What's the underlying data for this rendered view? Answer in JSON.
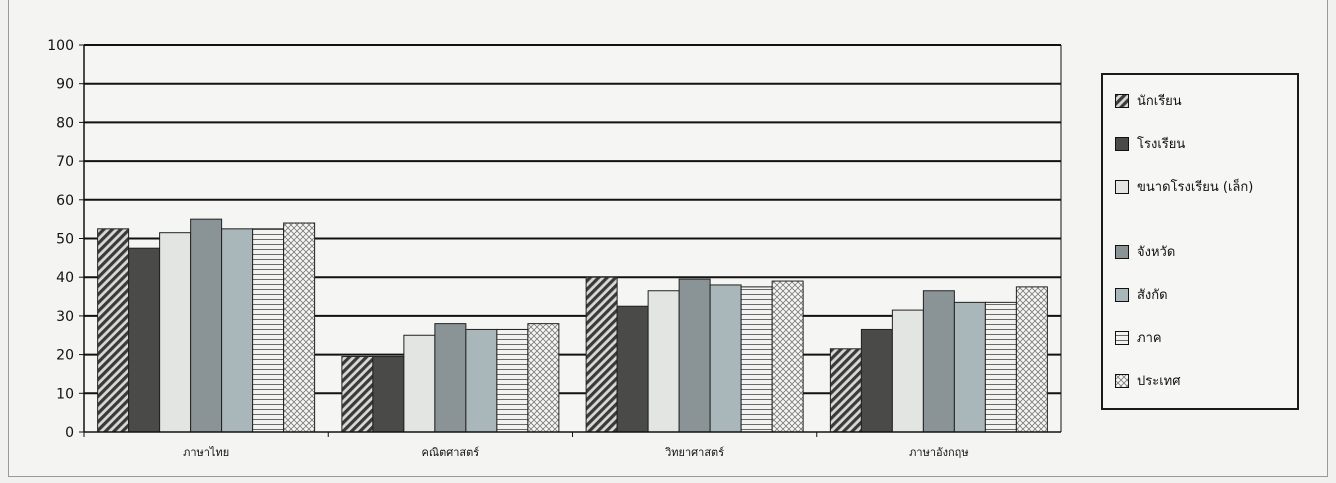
{
  "chart_data": {
    "type": "bar",
    "categories": [
      "ภาษาไทย",
      "คณิตศาสตร์",
      "วิทยาศาสตร์",
      "ภาษาอังกฤษ"
    ],
    "ylim": [
      0,
      100
    ],
    "yticks": [
      0,
      10,
      20,
      30,
      40,
      50,
      60,
      70,
      80,
      90,
      100
    ],
    "grid": true,
    "legend_position": "right",
    "series": [
      {
        "name": "นักเรียน",
        "values": [
          52.5,
          19.5,
          40,
          21.5
        ],
        "fill": "#6a6a68",
        "pattern": "diagonal-hatch"
      },
      {
        "name": "โรงเรียน",
        "values": [
          47.5,
          19.5,
          32.5,
          26.5
        ],
        "fill": "#4a4a48",
        "pattern": "solid"
      },
      {
        "name": "ขนาดโรงเรียน (เล็ก)",
        "values": [
          51.5,
          25,
          36.5,
          31.5
        ],
        "fill": "#e3e5e3",
        "pattern": "solid"
      },
      {
        "name": "จังหวัด",
        "values": [
          55,
          28,
          39.5,
          36.5
        ],
        "fill": "#8a9496",
        "pattern": "solid"
      },
      {
        "name": "สังกัด",
        "values": [
          52.5,
          26.5,
          38,
          33.5
        ],
        "fill": "#a9b7ba",
        "pattern": "solid"
      },
      {
        "name": "ภาค",
        "values": [
          52.5,
          26.5,
          37.5,
          33.5
        ],
        "fill": "#f2f2f0",
        "pattern": "horizontal-lines"
      },
      {
        "name": "ประเทศ",
        "values": [
          54,
          28,
          39,
          37.5
        ],
        "fill": "#f6f6f4",
        "pattern": "crosshatch"
      }
    ]
  }
}
